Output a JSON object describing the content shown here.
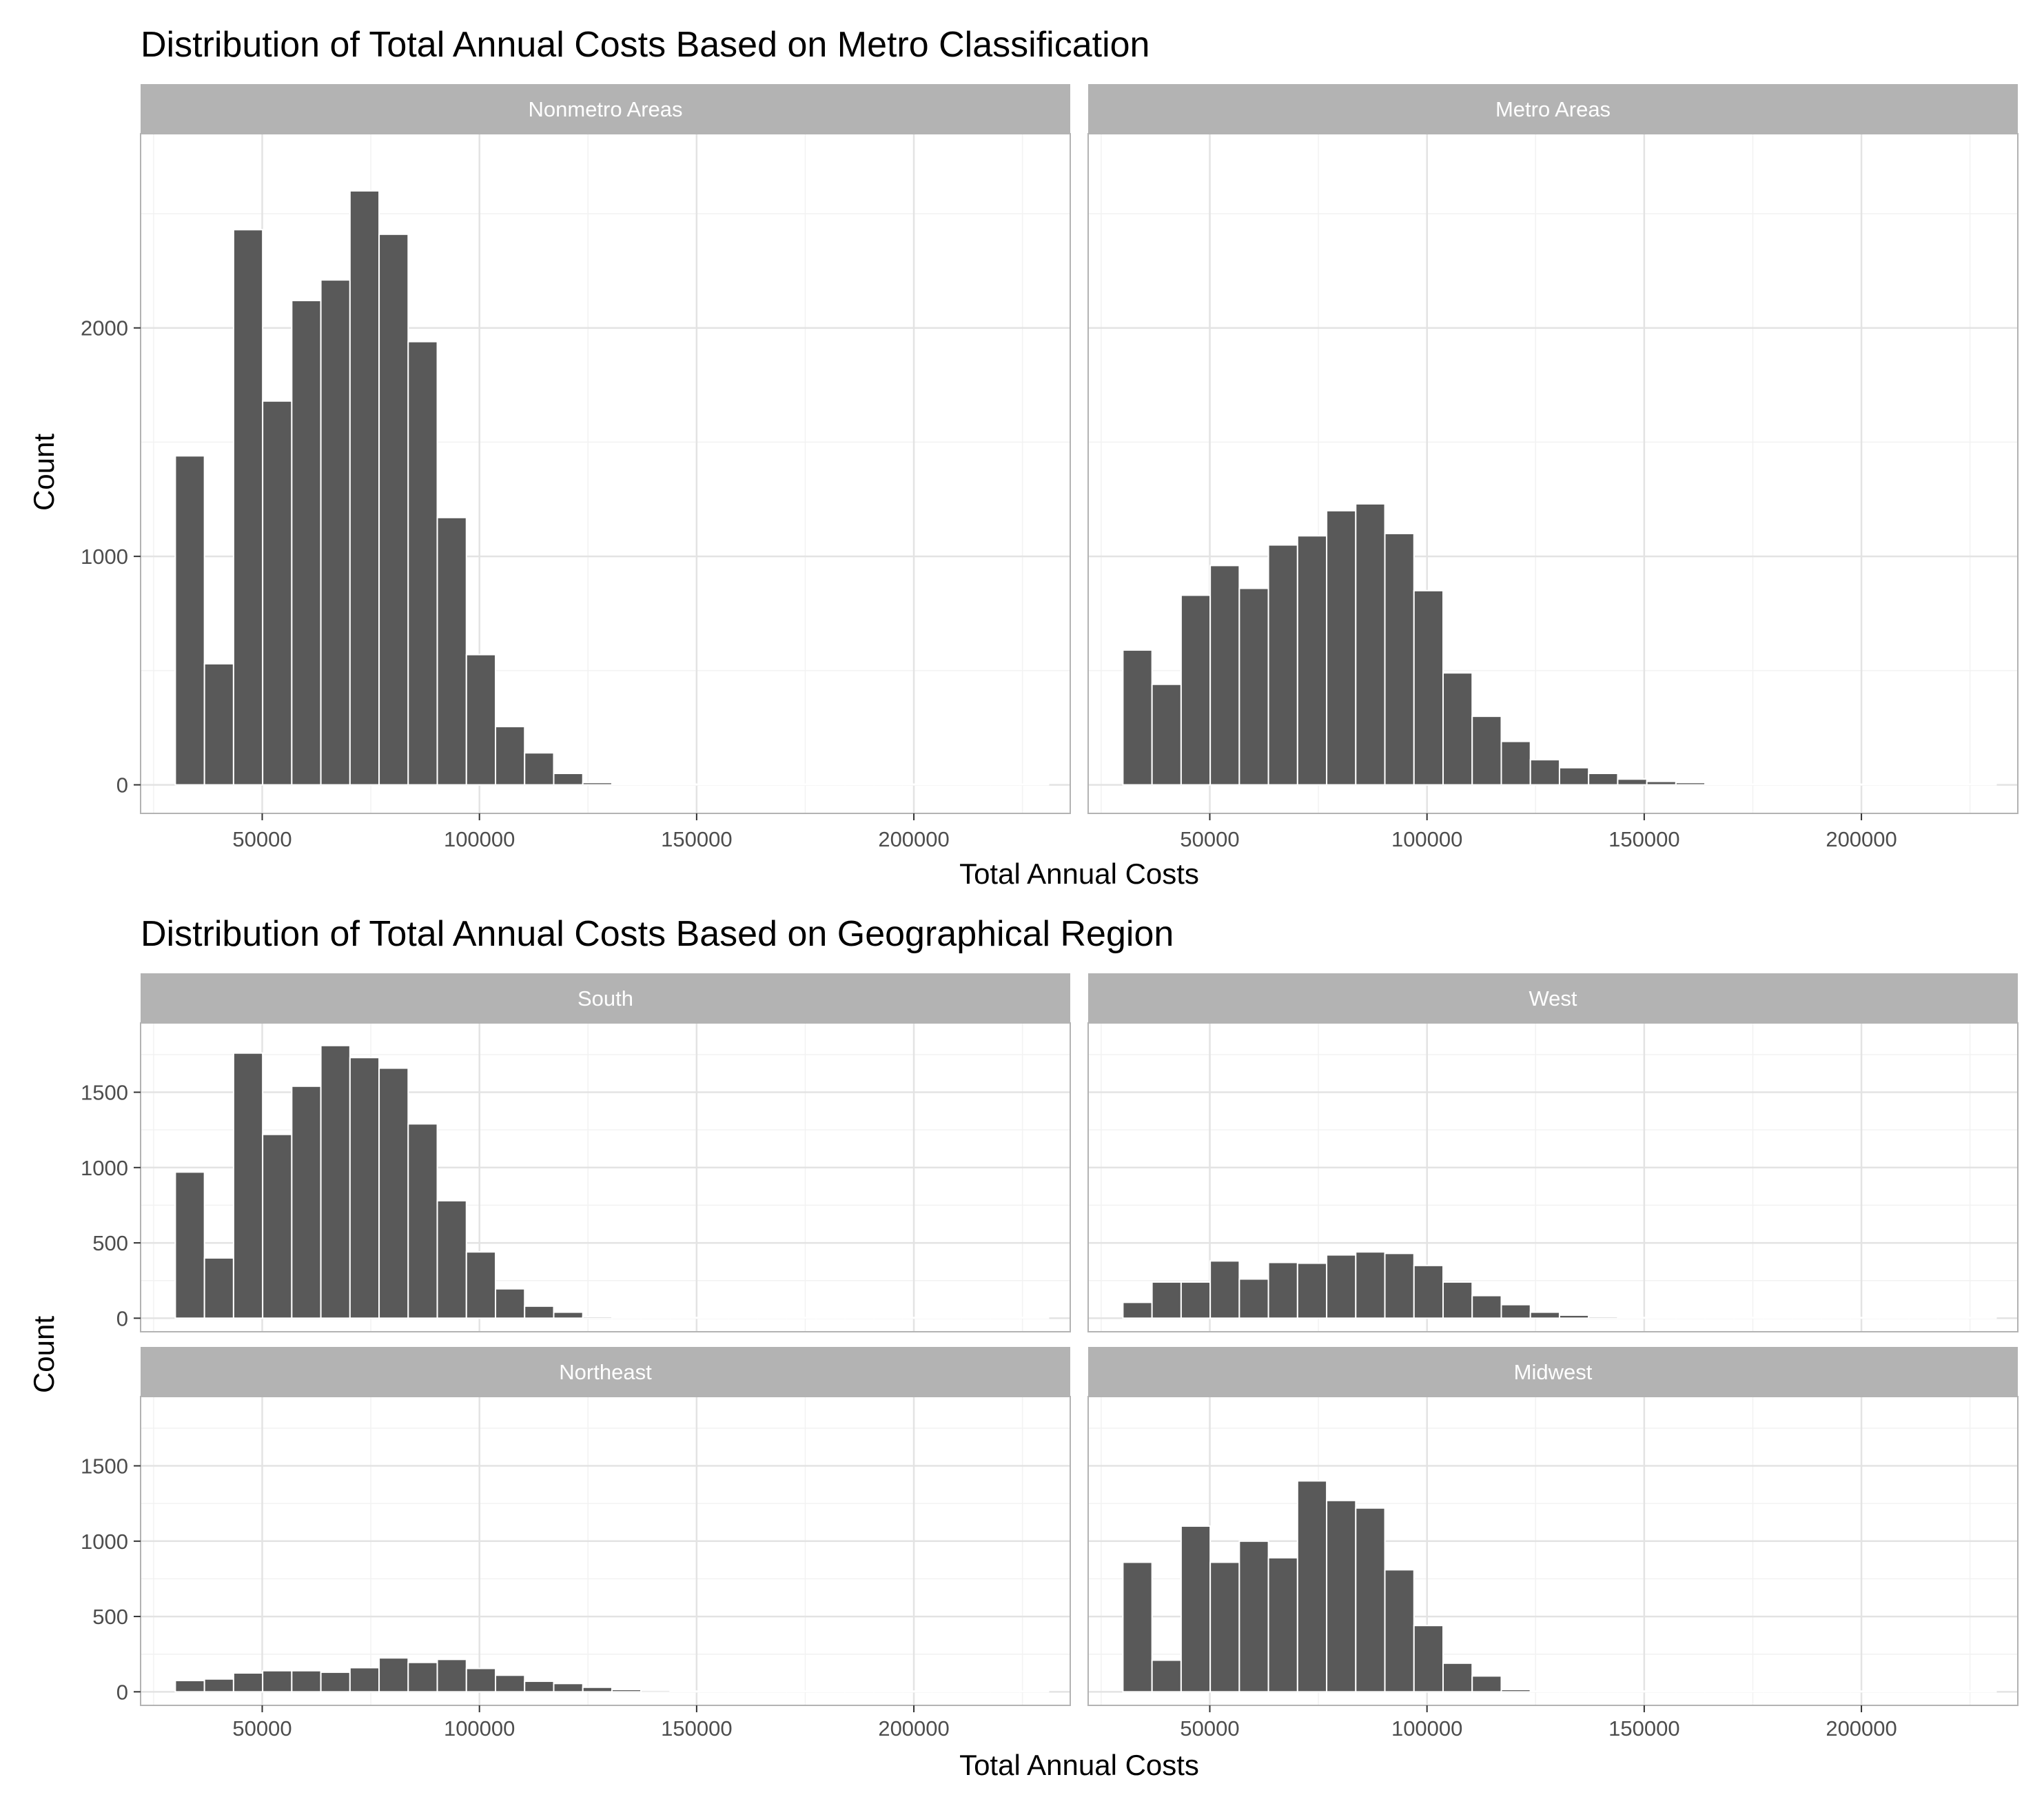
{
  "chart_data": [
    {
      "type": "bar",
      "chart_kind": "histogram",
      "title": "Distribution of Total Annual Costs Based on Metro Classification",
      "xlabel": "Total Annual Costs",
      "ylabel": "Count",
      "xlim": [
        22000,
        236000
      ],
      "ylim": [
        -125,
        2850
      ],
      "x_ticks": [
        50000,
        100000,
        150000,
        200000
      ],
      "x_tick_labels": [
        "50000",
        "100000",
        "150000",
        "200000"
      ],
      "y_ticks": [
        0,
        1000,
        2000
      ],
      "y_tick_labels": [
        "0",
        "1000",
        "2000"
      ],
      "bin_start": 30000,
      "bin_width": 6700,
      "grid": true,
      "bar_color": "#595959",
      "strip_color": "#b3b3b3",
      "panels": [
        {
          "label": "Nonmetro Areas",
          "values": [
            1440,
            530,
            2430,
            1680,
            2120,
            2210,
            2600,
            2410,
            1940,
            1170,
            570,
            255,
            140,
            50,
            10,
            0,
            0,
            0,
            0,
            0,
            0,
            0,
            0,
            0,
            0,
            0,
            0,
            0,
            0,
            0
          ]
        },
        {
          "label": "Metro Areas",
          "values": [
            590,
            440,
            830,
            960,
            860,
            1050,
            1090,
            1200,
            1230,
            1100,
            850,
            490,
            300,
            190,
            110,
            75,
            50,
            25,
            15,
            10,
            0,
            0,
            0,
            0,
            0,
            0,
            0,
            0,
            0,
            0
          ]
        }
      ]
    },
    {
      "type": "bar",
      "chart_kind": "histogram",
      "title": "Distribution of Total Annual Costs Based on Geographical Region",
      "xlabel": "Total Annual Costs",
      "ylabel": "Count",
      "xlim": [
        22000,
        236000
      ],
      "ylim": [
        -90,
        1960
      ],
      "x_ticks": [
        50000,
        100000,
        150000,
        200000
      ],
      "x_tick_labels": [
        "50000",
        "100000",
        "150000",
        "200000"
      ],
      "y_ticks": [
        0,
        500,
        1000,
        1500
      ],
      "y_tick_labels": [
        "0",
        "500",
        "1000",
        "1500"
      ],
      "bin_start": 30000,
      "bin_width": 6700,
      "grid": true,
      "bar_color": "#595959",
      "strip_color": "#b3b3b3",
      "panels": [
        {
          "label": "South",
          "values": [
            970,
            400,
            1760,
            1220,
            1540,
            1810,
            1730,
            1660,
            1290,
            780,
            440,
            195,
            80,
            40,
            10,
            0,
            0,
            0,
            0,
            0,
            0,
            0,
            0,
            0,
            0,
            0,
            0,
            0,
            0,
            0
          ]
        },
        {
          "label": "West",
          "values": [
            105,
            240,
            240,
            380,
            260,
            370,
            365,
            420,
            440,
            430,
            350,
            240,
            150,
            90,
            40,
            20,
            10,
            0,
            0,
            0,
            0,
            0,
            0,
            0,
            0,
            0,
            0,
            0,
            0,
            0
          ]
        },
        {
          "label": "Northeast",
          "values": [
            75,
            85,
            125,
            140,
            140,
            130,
            160,
            225,
            195,
            215,
            155,
            110,
            70,
            55,
            30,
            15,
            10,
            0,
            0,
            0,
            0,
            0,
            0,
            0,
            0,
            0,
            0,
            0,
            0,
            0
          ]
        },
        {
          "label": "Midwest",
          "values": [
            860,
            210,
            1100,
            860,
            1000,
            890,
            1400,
            1270,
            1220,
            810,
            440,
            190,
            105,
            15,
            0,
            0,
            0,
            0,
            0,
            0,
            0,
            0,
            0,
            0,
            0,
            0,
            0,
            0,
            0,
            0
          ]
        }
      ]
    }
  ]
}
